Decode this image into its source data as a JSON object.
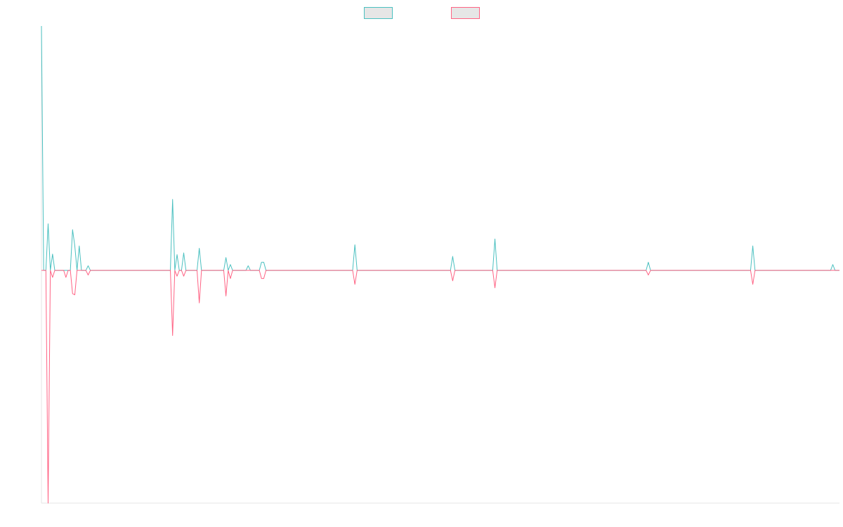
{
  "chart_data": {
    "type": "line",
    "title": "",
    "xlabel": "",
    "ylabel": "",
    "ylim": [
      -100,
      105
    ],
    "grid": false,
    "legend": "top-center",
    "series": [
      {
        "name": "",
        "color": "#4bc0c0",
        "fill": "#e6e6e6",
        "values": [
          105,
          0,
          0,
          20,
          0,
          7,
          0,
          0,
          0,
          0,
          0,
          0,
          0,
          0,
          17.5,
          10.5,
          0,
          10.5,
          0,
          0,
          0,
          2,
          0,
          0,
          0,
          0,
          0,
          0,
          0,
          0,
          0,
          0,
          0,
          0,
          0,
          0,
          0,
          0,
          0,
          0,
          0,
          0,
          0,
          0,
          0,
          0,
          0,
          0,
          0,
          0,
          0,
          0,
          0,
          0,
          0,
          0,
          0,
          0,
          0,
          30.5,
          0,
          6.8,
          0,
          0,
          7.5,
          0,
          0,
          0,
          0,
          0,
          0,
          9.5,
          0,
          0,
          0,
          0,
          0,
          0,
          0,
          0,
          0,
          0,
          0,
          5.5,
          0,
          2.5,
          0,
          0,
          0,
          0,
          0,
          0,
          0,
          2,
          0,
          0,
          0,
          0,
          0,
          3.5,
          3.5,
          0,
          0,
          0,
          0,
          0,
          0,
          0,
          0,
          0,
          0,
          0,
          0,
          0,
          0,
          0,
          0,
          0,
          0,
          0,
          0,
          0,
          0,
          0,
          0,
          0,
          0,
          0,
          0,
          0,
          0,
          0,
          0,
          0,
          0,
          0,
          0,
          0,
          0,
          0,
          0,
          11,
          0,
          0,
          0,
          0,
          0,
          0,
          0,
          0,
          0,
          0,
          0,
          0,
          0,
          0,
          0,
          0,
          0,
          0,
          0,
          0,
          0,
          0,
          0,
          0,
          0,
          0,
          0,
          0,
          0,
          0,
          0,
          0,
          0,
          0,
          0,
          0,
          0,
          0,
          0,
          0,
          0,
          0,
          0,
          6,
          0,
          0,
          0,
          0,
          0,
          0,
          0,
          0,
          0,
          0,
          0,
          0,
          0,
          0,
          0,
          0,
          0,
          0,
          13.5,
          0,
          0,
          0,
          0,
          0,
          0,
          0,
          0,
          0,
          0,
          0,
          0,
          0,
          0,
          0,
          0,
          0,
          0,
          0,
          0,
          0,
          0,
          0,
          0,
          0,
          0,
          0,
          0,
          0,
          0,
          0,
          0,
          0,
          0,
          0,
          0,
          0,
          0,
          0,
          0,
          0,
          0,
          0,
          0,
          0,
          0,
          0,
          0,
          0,
          0,
          0,
          0,
          0,
          0,
          0,
          0,
          0,
          0,
          0,
          0,
          0,
          0,
          0,
          0,
          0,
          0,
          0,
          0,
          3.5,
          0,
          0,
          0,
          0,
          0,
          0,
          0,
          0,
          0,
          0,
          0,
          0,
          0,
          0,
          0,
          0,
          0,
          0,
          0,
          0,
          0,
          0,
          0,
          0,
          0,
          0,
          0,
          0,
          0,
          0,
          0,
          0,
          0,
          0,
          0,
          0,
          0,
          0,
          0,
          0,
          0,
          0,
          0,
          0,
          0,
          0,
          10.5,
          0,
          0,
          0,
          0,
          0,
          0,
          0,
          0,
          0,
          0,
          0,
          0,
          0,
          0,
          0,
          0,
          0,
          0,
          0,
          0,
          0,
          0,
          0,
          0,
          0,
          0,
          0,
          0,
          0,
          0,
          0,
          0,
          0,
          0,
          0,
          2.5,
          0,
          0,
          0
        ]
      },
      {
        "name": "",
        "color": "#ff6384",
        "fill": "#e6e6e6",
        "values": [
          0,
          0,
          0,
          -100,
          0,
          -3,
          0,
          0,
          0,
          0,
          0,
          -3,
          0,
          0,
          -10,
          -10.5,
          0,
          0,
          0,
          0,
          0,
          -2,
          0,
          0,
          0,
          0,
          0,
          0,
          0,
          0,
          0,
          0,
          0,
          0,
          0,
          0,
          0,
          0,
          0,
          0,
          0,
          0,
          0,
          0,
          0,
          0,
          0,
          0,
          0,
          0,
          0,
          0,
          0,
          0,
          0,
          0,
          0,
          0,
          0,
          -28,
          0,
          -2.5,
          0,
          0,
          -2.5,
          0,
          0,
          0,
          0,
          0,
          0,
          -14,
          0,
          0,
          0,
          0,
          0,
          0,
          0,
          0,
          0,
          0,
          0,
          -11,
          0,
          -3.5,
          0,
          0,
          0,
          0,
          0,
          0,
          0,
          0,
          0,
          0,
          0,
          0,
          0,
          -3.5,
          -3.5,
          0,
          0,
          0,
          0,
          0,
          0,
          0,
          0,
          0,
          0,
          0,
          0,
          0,
          0,
          0,
          0,
          0,
          0,
          0,
          0,
          0,
          0,
          0,
          0,
          0,
          0,
          0,
          0,
          0,
          0,
          0,
          0,
          0,
          0,
          0,
          0,
          0,
          0,
          0,
          0,
          -6,
          0,
          0,
          0,
          0,
          0,
          0,
          0,
          0,
          0,
          0,
          0,
          0,
          0,
          0,
          0,
          0,
          0,
          0,
          0,
          0,
          0,
          0,
          0,
          0,
          0,
          0,
          0,
          0,
          0,
          0,
          0,
          0,
          0,
          0,
          0,
          0,
          0,
          0,
          0,
          0,
          0,
          0,
          0,
          -4.5,
          0,
          0,
          0,
          0,
          0,
          0,
          0,
          0,
          0,
          0,
          0,
          0,
          0,
          0,
          0,
          0,
          0,
          0,
          -7.5,
          0,
          0,
          0,
          0,
          0,
          0,
          0,
          0,
          0,
          0,
          0,
          0,
          0,
          0,
          0,
          0,
          0,
          0,
          0,
          0,
          0,
          0,
          0,
          0,
          0,
          0,
          0,
          0,
          0,
          0,
          0,
          0,
          0,
          0,
          0,
          0,
          0,
          0,
          0,
          0,
          0,
          0,
          0,
          0,
          0,
          0,
          0,
          0,
          0,
          0,
          0,
          0,
          0,
          0,
          0,
          0,
          0,
          0,
          0,
          0,
          0,
          0,
          0,
          0,
          0,
          0,
          0,
          0,
          -2,
          0,
          0,
          0,
          0,
          0,
          0,
          0,
          0,
          0,
          0,
          0,
          0,
          0,
          0,
          0,
          0,
          0,
          0,
          0,
          0,
          0,
          0,
          0,
          0,
          0,
          0,
          0,
          0,
          0,
          0,
          0,
          0,
          0,
          0,
          0,
          0,
          0,
          0,
          0,
          0,
          0,
          0,
          0,
          0,
          0,
          0,
          -6,
          0,
          0,
          0,
          0,
          0,
          0,
          0,
          0,
          0,
          0,
          0,
          0,
          0,
          0,
          0,
          0,
          0,
          0,
          0,
          0,
          0,
          0,
          0,
          0,
          0,
          0,
          0,
          0,
          0,
          0,
          0,
          0,
          0,
          0,
          0,
          0,
          0,
          0,
          0
        ]
      }
    ]
  }
}
